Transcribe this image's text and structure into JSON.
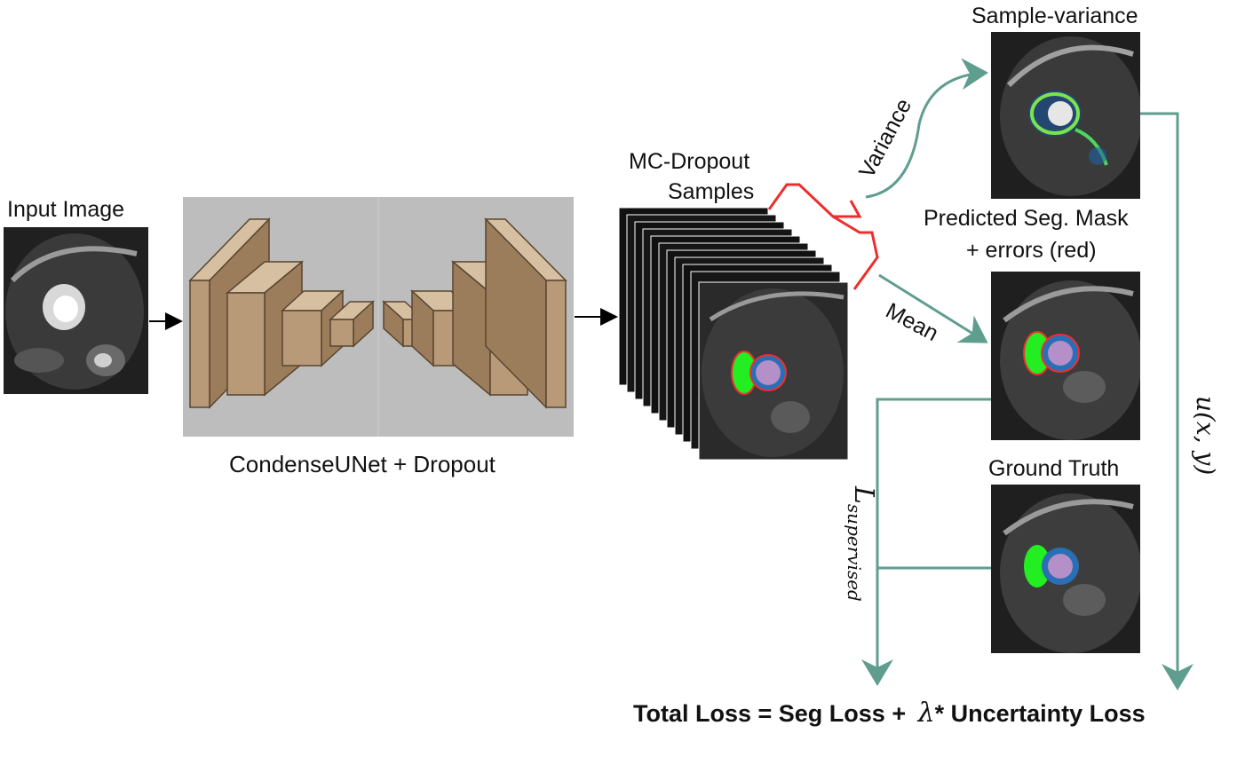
{
  "labels": {
    "input_image": "Input Image",
    "network": "CondenseUNet + Dropout",
    "mc_dropout_line1": "MC-Dropout",
    "mc_dropout_line2": "Samples",
    "variance": "Variance",
    "mean": "Mean",
    "sample_variance": "Sample-variance",
    "predicted_line1": "Predicted Seg. Mask",
    "predicted_line2": "+ errors (red)",
    "ground_truth": "Ground Truth",
    "uncertainty_fn": "u(x, y)",
    "loss_symbol": "L",
    "loss_subscript": "supervised",
    "total_loss_left": "Total Loss = Seg Loss +",
    "lambda": "λ",
    "total_loss_right": "* Uncertainty Loss"
  },
  "colors": {
    "arrow_teal": "#5f9e8f",
    "brace_red": "#ee2e2e",
    "block_fill": "#b89a78",
    "block_stroke": "#5a4530",
    "panel_gray": "#bdbdbd",
    "mask_green": "#22ee22",
    "mask_purple": "#b48fc8",
    "mask_blue": "#2a6fb5"
  }
}
